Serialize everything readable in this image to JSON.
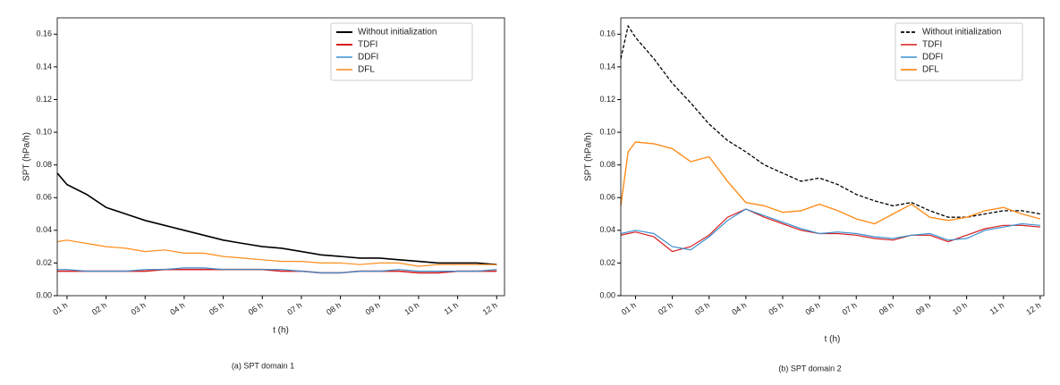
{
  "chart_data": [
    {
      "type": "line",
      "caption": "(a) SPT domain 1",
      "x_label": "t (h)",
      "y_label": "SPT (hPa/h)",
      "x": [
        0.75,
        1.0,
        1.5,
        2.0,
        2.5,
        3.0,
        3.5,
        4.0,
        4.5,
        5.0,
        5.5,
        6.0,
        6.5,
        7.0,
        7.5,
        8.0,
        8.5,
        9.0,
        9.5,
        10.0,
        10.5,
        11.0,
        11.5,
        12.0
      ],
      "xlim": [
        0.75,
        12.2
      ],
      "xticks": [
        {
          "value": 1,
          "label": "01 h"
        },
        {
          "value": 2,
          "label": "02 h"
        },
        {
          "value": 3,
          "label": "03 h"
        },
        {
          "value": 4,
          "label": "04 h"
        },
        {
          "value": 5,
          "label": "05 h"
        },
        {
          "value": 6,
          "label": "06 h"
        },
        {
          "value": 7,
          "label": "07 h"
        },
        {
          "value": 8,
          "label": "08 h"
        },
        {
          "value": 9,
          "label": "09 h"
        },
        {
          "value": 10,
          "label": "10 h"
        },
        {
          "value": 11,
          "label": "11 h"
        },
        {
          "value": 12,
          "label": "12 h"
        }
      ],
      "ylim": [
        0,
        0.17
      ],
      "yticks": [
        {
          "value": 0,
          "label": "0.00"
        },
        {
          "value": 0.02,
          "label": "0.02"
        },
        {
          "value": 0.04,
          "label": "0.04"
        },
        {
          "value": 0.06,
          "label": "0.06"
        },
        {
          "value": 0.08,
          "label": "0.08"
        },
        {
          "value": 0.1,
          "label": "0.10"
        },
        {
          "value": 0.12,
          "label": "0.12"
        },
        {
          "value": 0.14,
          "label": "0.14"
        },
        {
          "value": 0.16,
          "label": "0.16"
        }
      ],
      "legend": "upper right",
      "series": [
        {
          "name": "Without initialization",
          "color": "#000000",
          "style": "solid",
          "width": 1.6,
          "values": [
            0.075,
            0.068,
            0.062,
            0.054,
            0.05,
            0.046,
            0.043,
            0.04,
            0.037,
            0.034,
            0.032,
            0.03,
            0.029,
            0.027,
            0.025,
            0.024,
            0.023,
            0.023,
            0.022,
            0.021,
            0.02,
            0.02,
            0.02,
            0.019
          ]
        },
        {
          "name": "TDFI",
          "color": "#d81e1e",
          "style": "solid",
          "width": 1.6,
          "values": [
            0.015,
            0.015,
            0.015,
            0.015,
            0.015,
            0.015,
            0.016,
            0.016,
            0.016,
            0.016,
            0.016,
            0.016,
            0.015,
            0.015,
            0.014,
            0.014,
            0.015,
            0.015,
            0.015,
            0.014,
            0.014,
            0.015,
            0.015,
            0.015
          ]
        },
        {
          "name": "DDFI",
          "color": "#3a8fd0",
          "style": "solid",
          "width": 1.2,
          "values": [
            0.016,
            0.016,
            0.015,
            0.015,
            0.015,
            0.016,
            0.016,
            0.017,
            0.017,
            0.016,
            0.016,
            0.016,
            0.016,
            0.015,
            0.014,
            0.014,
            0.015,
            0.015,
            0.016,
            0.015,
            0.015,
            0.015,
            0.015,
            0.016
          ]
        },
        {
          "name": "DFL",
          "color": "#ff8c1a",
          "style": "solid",
          "width": 1.2,
          "values": [
            0.033,
            0.034,
            0.032,
            0.03,
            0.029,
            0.027,
            0.028,
            0.026,
            0.026,
            0.024,
            0.023,
            0.022,
            0.021,
            0.021,
            0.02,
            0.02,
            0.019,
            0.02,
            0.02,
            0.018,
            0.019,
            0.019,
            0.019,
            0.019
          ]
        }
      ]
    },
    {
      "type": "line",
      "caption": "(b) SPT domain 2",
      "x_label": "t (h)",
      "y_label": "SPT (hPa/h)",
      "x": [
        0.6,
        0.8,
        1.0,
        1.5,
        2.0,
        2.5,
        3.0,
        3.5,
        4.0,
        4.5,
        5.0,
        5.5,
        6.0,
        6.5,
        7.0,
        7.5,
        8.0,
        8.5,
        9.0,
        9.5,
        10.0,
        10.5,
        11.0,
        11.5,
        12.0
      ],
      "xlim": [
        0.6,
        12.1
      ],
      "xticks": [
        {
          "value": 1,
          "label": "01 h"
        },
        {
          "value": 2,
          "label": "02 h"
        },
        {
          "value": 3,
          "label": "03 h"
        },
        {
          "value": 4,
          "label": "04 h"
        },
        {
          "value": 5,
          "label": "05 h"
        },
        {
          "value": 6,
          "label": "06 h"
        },
        {
          "value": 7,
          "label": "07 h"
        },
        {
          "value": 8,
          "label": "08 h"
        },
        {
          "value": 9,
          "label": "09 h"
        },
        {
          "value": 10,
          "label": "10 h"
        },
        {
          "value": 11,
          "label": "11 h"
        },
        {
          "value": 12,
          "label": "12 h"
        }
      ],
      "ylim": [
        0,
        0.17
      ],
      "yticks": [
        {
          "value": 0,
          "label": "0.00"
        },
        {
          "value": 0.02,
          "label": "0.02"
        },
        {
          "value": 0.04,
          "label": "0.04"
        },
        {
          "value": 0.06,
          "label": "0.06"
        },
        {
          "value": 0.08,
          "label": "0.08"
        },
        {
          "value": 0.1,
          "label": "0.10"
        },
        {
          "value": 0.12,
          "label": "0.12"
        },
        {
          "value": 0.14,
          "label": "0.14"
        },
        {
          "value": 0.16,
          "label": "0.16"
        }
      ],
      "legend": "upper right",
      "series": [
        {
          "name": "Without initialization",
          "color": "#000000",
          "style": "dashed",
          "width": 1.3,
          "values": [
            0.145,
            0.165,
            0.158,
            0.145,
            0.13,
            0.118,
            0.105,
            0.095,
            0.088,
            0.08,
            0.075,
            0.07,
            0.072,
            0.068,
            0.062,
            0.058,
            0.055,
            0.057,
            0.052,
            0.048,
            0.048,
            0.05,
            0.052,
            0.052,
            0.05
          ]
        },
        {
          "name": "TDFI",
          "color": "#d81e1e",
          "style": "solid",
          "width": 1.2,
          "values": [
            0.037,
            0.038,
            0.039,
            0.036,
            0.027,
            0.03,
            0.037,
            0.048,
            0.053,
            0.048,
            0.044,
            0.04,
            0.038,
            0.038,
            0.037,
            0.035,
            0.034,
            0.037,
            0.037,
            0.033,
            0.037,
            0.041,
            0.043,
            0.043,
            0.042
          ]
        },
        {
          "name": "DDFI",
          "color": "#3a8fd0",
          "style": "solid",
          "width": 1.2,
          "values": [
            0.038,
            0.039,
            0.04,
            0.038,
            0.03,
            0.028,
            0.036,
            0.046,
            0.053,
            0.049,
            0.045,
            0.041,
            0.038,
            0.039,
            0.038,
            0.036,
            0.035,
            0.037,
            0.038,
            0.034,
            0.035,
            0.04,
            0.042,
            0.044,
            0.043
          ]
        },
        {
          "name": "DFL",
          "color": "#ff8c1a",
          "style": "solid",
          "width": 1.4,
          "values": [
            0.055,
            0.088,
            0.094,
            0.093,
            0.09,
            0.082,
            0.085,
            0.07,
            0.057,
            0.055,
            0.051,
            0.052,
            0.056,
            0.052,
            0.047,
            0.044,
            0.05,
            0.056,
            0.048,
            0.046,
            0.048,
            0.052,
            0.054,
            0.05,
            0.047
          ]
        }
      ]
    }
  ]
}
